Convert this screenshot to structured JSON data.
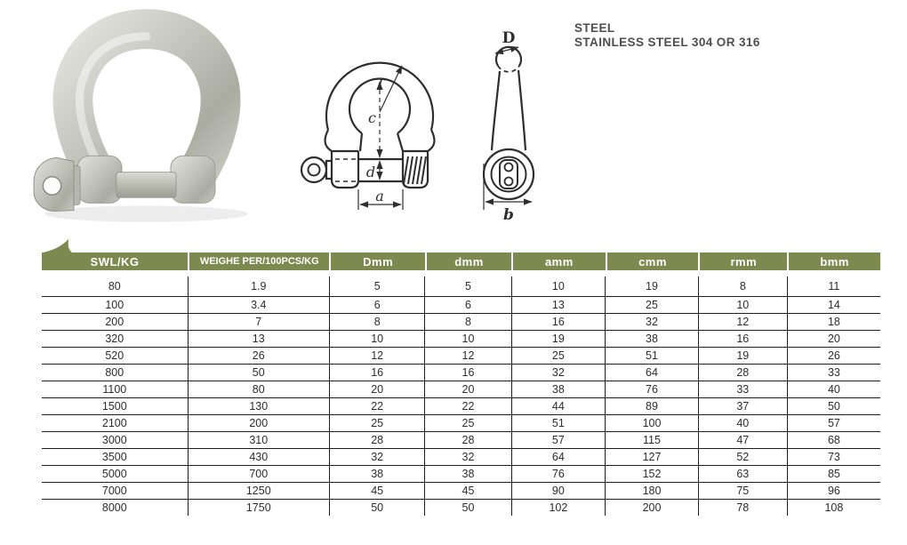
{
  "material": {
    "line1": "STEEL",
    "line2": "STAINLESS STEEL 304 OR 316"
  },
  "diagrams": {
    "front": {
      "radius_label": "r",
      "inside_length_label": "c",
      "pin_diameter_label": "d",
      "inside_width_label": "a"
    },
    "side": {
      "bow_diameter_label": "D",
      "eye_width_label": "b"
    }
  },
  "table": {
    "header_color": "#7c8a50",
    "columns": [
      "SWL/KG",
      "WEIGHE PER/100PCS/KG",
      "Dmm",
      "dmm",
      "amm",
      "cmm",
      "rmm",
      "bmm"
    ],
    "rows": [
      [
        80,
        1.9,
        5,
        5,
        10,
        19,
        8,
        11
      ],
      [
        100,
        3.4,
        6,
        6,
        13,
        25,
        10,
        14
      ],
      [
        200,
        7,
        8,
        8,
        16,
        32,
        12,
        18
      ],
      [
        320,
        13,
        10,
        10,
        19,
        38,
        16,
        20
      ],
      [
        520,
        26,
        12,
        12,
        25,
        51,
        19,
        26
      ],
      [
        800,
        50,
        16,
        16,
        32,
        64,
        28,
        33
      ],
      [
        1100,
        80,
        20,
        20,
        38,
        76,
        33,
        40
      ],
      [
        1500,
        130,
        22,
        22,
        44,
        89,
        37,
        50
      ],
      [
        2100,
        200,
        25,
        25,
        51,
        100,
        40,
        57
      ],
      [
        3000,
        310,
        28,
        28,
        57,
        115,
        47,
        68
      ],
      [
        3500,
        430,
        32,
        32,
        64,
        127,
        52,
        73
      ],
      [
        5000,
        700,
        38,
        38,
        76,
        152,
        63,
        85
      ],
      [
        7000,
        1250,
        45,
        45,
        90,
        180,
        75,
        96
      ],
      [
        8000,
        1750,
        50,
        50,
        102,
        200,
        78,
        108
      ]
    ]
  }
}
